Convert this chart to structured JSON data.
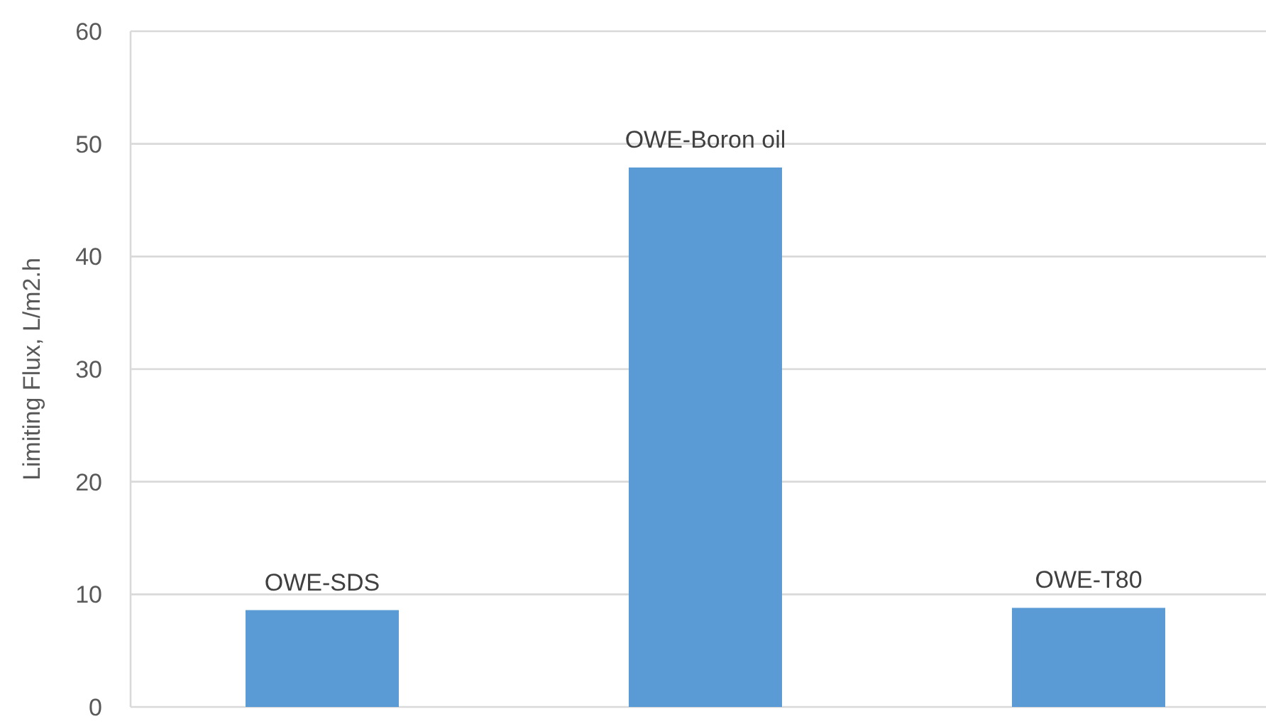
{
  "chart_data": {
    "type": "bar",
    "ylabel": "Limiting Flux, L/m2.h",
    "categories": [
      "OWE-SDS",
      "OWE-Boron oil",
      "OWE-T80"
    ],
    "values": [
      8.6,
      47.9,
      8.8
    ],
    "color": "#5b9bd5",
    "ylim": [
      0,
      60
    ],
    "yticks": [
      0,
      10,
      20,
      30,
      40,
      50,
      60
    ],
    "grid": "y"
  }
}
